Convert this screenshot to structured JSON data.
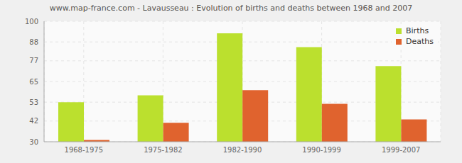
{
  "chart_data": {
    "type": "bar",
    "title": "www.map-france.com - Lavausseau : Evolution of births and deaths between 1968 and 2007",
    "categories": [
      "1968-1975",
      "1975-1982",
      "1982-1990",
      "1990-1999",
      "1999-2007"
    ],
    "series": [
      {
        "name": "Births",
        "color": "#bbe02e",
        "values": [
          53,
          57,
          93,
          85,
          74
        ]
      },
      {
        "name": "Deaths",
        "color": "#e0632e",
        "values": [
          31,
          41,
          60,
          52,
          43
        ]
      }
    ],
    "ylim": [
      30,
      100
    ],
    "yticks": [
      30,
      42,
      53,
      65,
      77,
      88,
      100
    ],
    "grid": true,
    "legend": "top-right"
  }
}
